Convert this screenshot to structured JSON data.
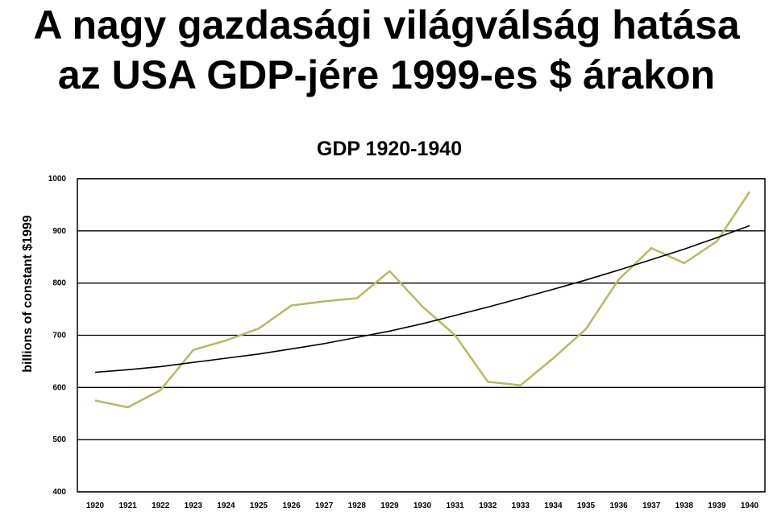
{
  "slide": {
    "title_line1": "A nagy gazdasági világválság hatása",
    "title_line2": "az USA GDP-jére 1999-es $ árakon"
  },
  "chart_data": {
    "type": "line",
    "title": "GDP 1920-1940",
    "xlabel": "",
    "ylabel": "billions of constant $1999",
    "ylim": [
      400,
      1000
    ],
    "yticks": [
      "400",
      "500",
      "600",
      "700",
      "800",
      "900",
      "1000"
    ],
    "grid": true,
    "categories": [
      "1920",
      "1921",
      "1922",
      "1923",
      "1924",
      "1925",
      "1926",
      "1927",
      "1928",
      "1929",
      "1930",
      "1931",
      "1932",
      "1933",
      "1934",
      "1935",
      "1936",
      "1937",
      "1938",
      "1939",
      "1940"
    ],
    "series": [
      {
        "color": "#b8b860",
        "values": [
          575,
          562,
          595,
          672,
          690,
          713,
          757,
          765,
          771,
          823,
          755,
          700,
          611,
          604,
          656,
          712,
          807,
          867,
          838,
          880,
          975
        ]
      },
      {
        "color": "#000000",
        "values": [
          629,
          634,
          640,
          648,
          656,
          664,
          674,
          684,
          696,
          708,
          722,
          738,
          754,
          771,
          788,
          806,
          825,
          845,
          865,
          887,
          910
        ]
      }
    ]
  }
}
